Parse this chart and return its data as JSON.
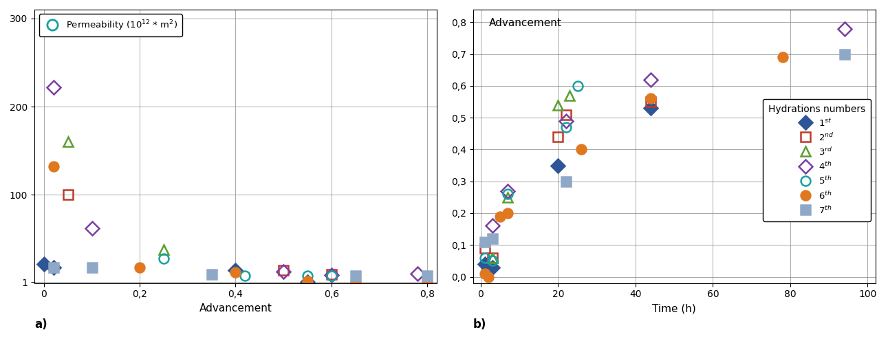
{
  "panel_a": {
    "xlabel": "Advancement",
    "label": "a)",
    "legend_label": "Permeability (10$^{12}$ * m$^2$)",
    "xlim": [
      -0.02,
      0.82
    ],
    "ylim": [
      0,
      310
    ],
    "xticks": [
      0.0,
      0.2,
      0.4,
      0.6,
      0.8
    ],
    "xticklabels": [
      "0",
      "0,2",
      "0,4",
      "0,6",
      "0,8"
    ],
    "yticks": [
      1,
      100,
      200,
      300
    ],
    "yticklabels": [
      "1",
      "100",
      "200",
      "300"
    ],
    "series": {
      "1st": {
        "color": "#2e5595",
        "marker": "D",
        "filled": true,
        "x": [
          0.0,
          0.02,
          0.4,
          0.55
        ],
        "y": [
          22,
          18,
          15,
          1
        ]
      },
      "2nd": {
        "color": "#c0392b",
        "marker": "s",
        "filled": false,
        "x": [
          0.05,
          0.5,
          0.6
        ],
        "y": [
          100,
          15,
          10
        ]
      },
      "3rd": {
        "color": "#5c9e31",
        "marker": "^",
        "filled": false,
        "x": [
          0.05,
          0.25,
          0.55
        ],
        "y": [
          160,
          38,
          2
        ]
      },
      "4th": {
        "color": "#7b3fa0",
        "marker": "D",
        "filled": false,
        "x": [
          0.02,
          0.1,
          0.5,
          0.6,
          0.78
        ],
        "y": [
          222,
          62,
          13,
          9,
          11
        ]
      },
      "5th": {
        "color": "#17a0a0",
        "marker": "o",
        "filled": false,
        "x": [
          0.25,
          0.42,
          0.55,
          0.6
        ],
        "y": [
          28,
          8,
          8,
          8
        ]
      },
      "6th": {
        "color": "#e07820",
        "marker": "o",
        "filled": true,
        "x": [
          0.02,
          0.2,
          0.4,
          0.55,
          0.65,
          0.8
        ],
        "y": [
          132,
          18,
          12,
          2,
          1.5,
          1
        ]
      },
      "7th": {
        "color": "#8fa8c8",
        "marker": "s",
        "filled": true,
        "x": [
          0.02,
          0.1,
          0.35,
          0.65,
          0.8
        ],
        "y": [
          18,
          18,
          10,
          8,
          8
        ]
      }
    }
  },
  "panel_b": {
    "title": "Advancement",
    "xlabel": "Time (h)",
    "label": "b)",
    "legend_title": "Hydrations numbers",
    "xlim": [
      -2,
      102
    ],
    "ylim": [
      -0.02,
      0.84
    ],
    "xticks": [
      0,
      20,
      40,
      60,
      80,
      100
    ],
    "xticklabels": [
      "0",
      "20",
      "40",
      "60",
      "80",
      "100"
    ],
    "yticks": [
      0.0,
      0.1,
      0.2,
      0.3,
      0.4,
      0.5,
      0.6,
      0.7,
      0.8
    ],
    "yticklabels": [
      "0,0",
      "0,1",
      "0,2",
      "0,3",
      "0,4",
      "0,5",
      "0,6",
      "0,7",
      "0,8"
    ],
    "series": {
      "1st": {
        "color": "#2e5595",
        "marker": "D",
        "filled": true,
        "x": [
          1,
          3,
          20,
          44
        ],
        "y": [
          0.04,
          0.03,
          0.35,
          0.53
        ]
      },
      "2nd": {
        "color": "#c0392b",
        "marker": "s",
        "filled": false,
        "x": [
          1,
          3,
          20,
          22,
          44
        ],
        "y": [
          0.09,
          0.06,
          0.44,
          0.51,
          0.55
        ]
      },
      "3rd": {
        "color": "#5c9e31",
        "marker": "^",
        "filled": false,
        "x": [
          3,
          7,
          20,
          23
        ],
        "y": [
          0.06,
          0.25,
          0.54,
          0.57
        ]
      },
      "4th": {
        "color": "#7b3fa0",
        "marker": "D",
        "filled": false,
        "x": [
          3,
          7,
          22,
          44,
          94
        ],
        "y": [
          0.16,
          0.27,
          0.49,
          0.62,
          0.78
        ]
      },
      "5th": {
        "color": "#17a0a0",
        "marker": "o",
        "filled": false,
        "x": [
          1,
          3,
          7,
          22,
          25
        ],
        "y": [
          0.06,
          0.05,
          0.26,
          0.47,
          0.6
        ]
      },
      "6th": {
        "color": "#e07820",
        "marker": "o",
        "filled": true,
        "x": [
          1,
          2,
          5,
          7,
          26,
          44,
          78
        ],
        "y": [
          0.01,
          0.0,
          0.19,
          0.2,
          0.4,
          0.56,
          0.69
        ]
      },
      "7th": {
        "color": "#8fa8c8",
        "marker": "s",
        "filled": true,
        "x": [
          1,
          3,
          22,
          94
        ],
        "y": [
          0.11,
          0.12,
          0.3,
          0.7
        ]
      }
    }
  }
}
